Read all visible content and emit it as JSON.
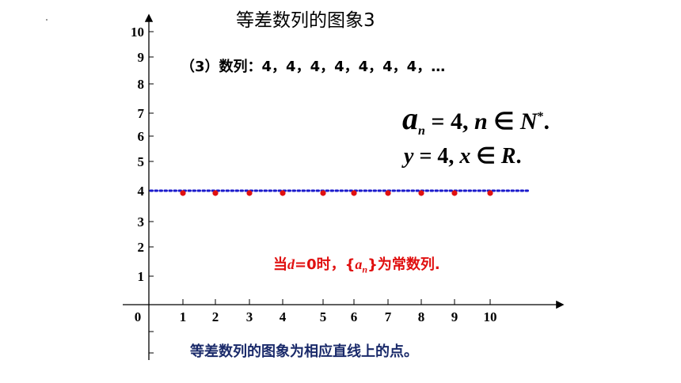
{
  "title": "等差数列的图象3",
  "sequence_text": "（3）数列：4，4，4，4，4，4，4，…",
  "formula1": {
    "a": "a",
    "sub": "n",
    "rest": " = 4, ",
    "n": "n",
    "in": " ∈ ",
    "N": "N",
    "sup": "*",
    "end": "."
  },
  "formula2": {
    "y": "y",
    "rest": " = 4, ",
    "x": "x",
    "in": " ∈ ",
    "R": "R",
    "end": "."
  },
  "note_red": {
    "pre": "当",
    "d": "d",
    "eq": "=0时，{",
    "a": "a",
    "sub": "n",
    "post": "}为常数列."
  },
  "note_bottom": "等差数列的图象为相应直线上的点。",
  "colors": {
    "line": "#1a1acc",
    "points": "#e01010",
    "note_red": "#e01010",
    "note_bottom": "#1a2a6a"
  },
  "chart_data": {
    "type": "scatter",
    "x_ticks": [
      "0",
      "1",
      "2",
      "3",
      "4",
      "5",
      "6",
      "7",
      "8",
      "9",
      "10"
    ],
    "y_ticks": [
      "1",
      "2",
      "3",
      "4",
      "5",
      "6",
      "7",
      "8",
      "9",
      "10"
    ],
    "xlim": [
      0,
      10
    ],
    "ylim": [
      0,
      10
    ],
    "points": [
      {
        "x": 1,
        "y": 4
      },
      {
        "x": 2,
        "y": 4
      },
      {
        "x": 3,
        "y": 4
      },
      {
        "x": 4,
        "y": 4
      },
      {
        "x": 5,
        "y": 4
      },
      {
        "x": 6,
        "y": 4
      },
      {
        "x": 7,
        "y": 4
      },
      {
        "x": 8,
        "y": 4
      },
      {
        "x": 9,
        "y": 4
      },
      {
        "x": 10,
        "y": 4
      }
    ],
    "line": {
      "y": 4,
      "style": "dotted"
    }
  }
}
